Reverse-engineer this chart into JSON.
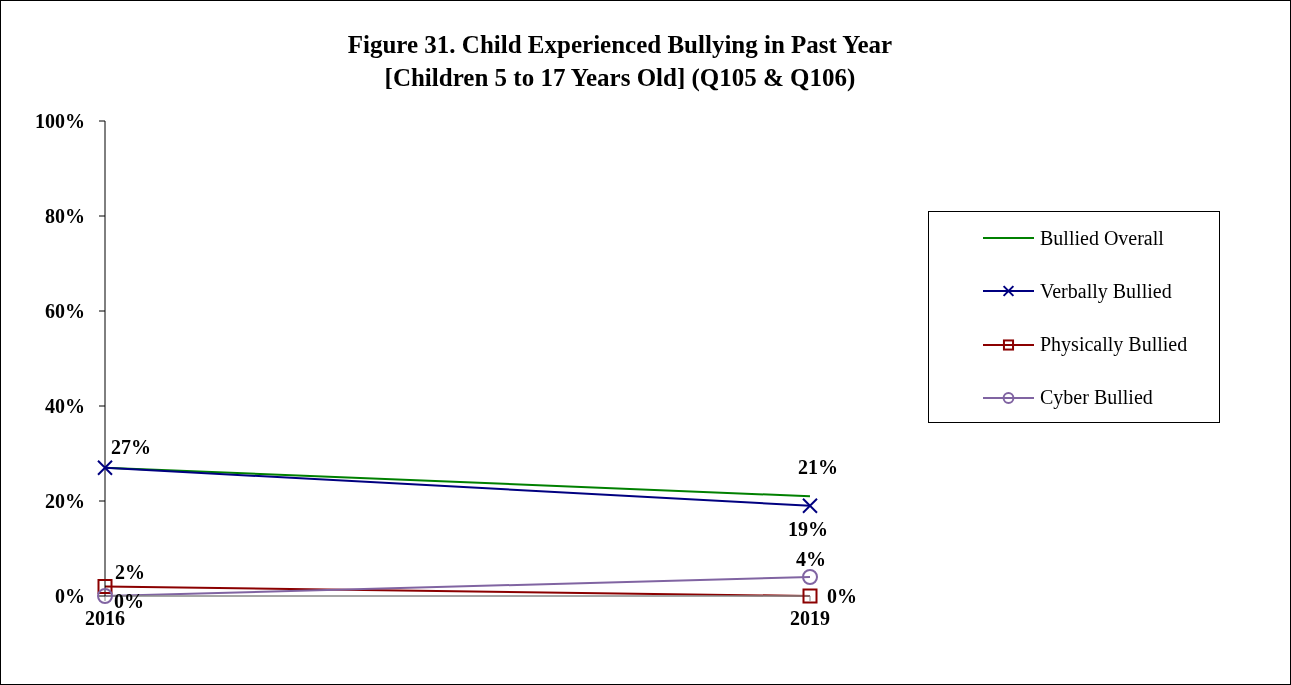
{
  "chart_data": {
    "type": "line",
    "title": "Figure 31. Child Experienced Bullying in Past Year\n[Children 5 to 17 Years Old] (Q105 & Q106)",
    "x": [
      2016,
      2019
    ],
    "xlim": [
      2016,
      2019
    ],
    "xticks": [
      2016,
      2019
    ],
    "series": [
      {
        "name": "Bullied Overall",
        "color": "#008000",
        "marker": "none",
        "values": [
          27,
          21
        ],
        "value_labels": [
          "27%",
          "21%"
        ]
      },
      {
        "name": "Verbally Bullied",
        "color": "#000080",
        "marker": "cross",
        "values": [
          27,
          19
        ],
        "value_labels": [
          null,
          "19%"
        ]
      },
      {
        "name": "Physically Bullied",
        "color": "#8b0000",
        "marker": "square",
        "values": [
          2,
          0
        ],
        "value_labels": [
          "2%",
          "0%"
        ]
      },
      {
        "name": "Cyber Bullied",
        "color": "#8064a2",
        "marker": "circle",
        "values": [
          0,
          4
        ],
        "value_labels": [
          "0%",
          "4%"
        ]
      }
    ],
    "ylim": [
      0,
      100
    ],
    "yticks": [
      {
        "value": 0,
        "label": "0%"
      },
      {
        "value": 20,
        "label": "20%"
      },
      {
        "value": 40,
        "label": "40%"
      },
      {
        "value": 60,
        "label": "60%"
      },
      {
        "value": 80,
        "label": "80%"
      },
      {
        "value": 100,
        "label": "100%"
      }
    ],
    "grid": false,
    "legend": "right"
  }
}
